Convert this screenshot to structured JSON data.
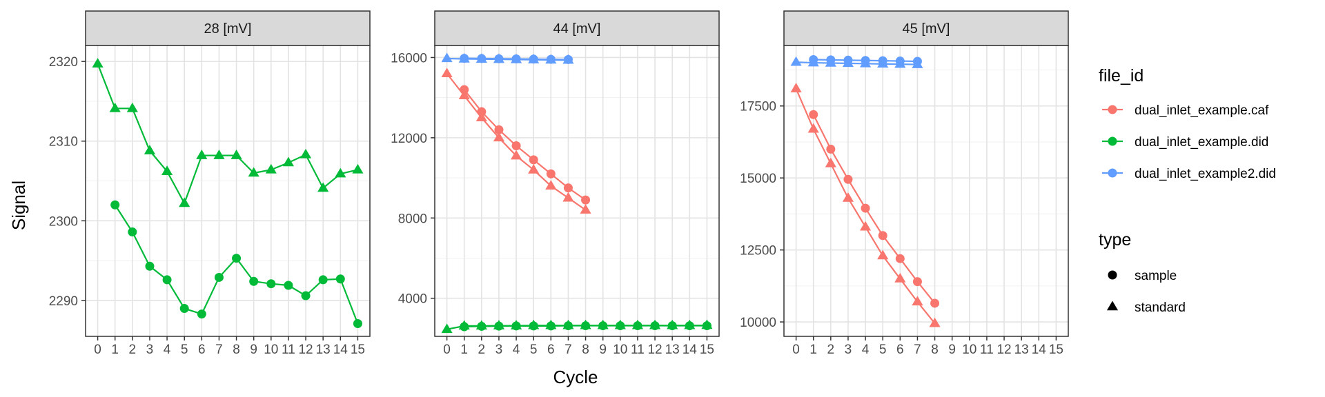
{
  "chart_data": {
    "type": "line",
    "title": "",
    "xlabel": "Cycle",
    "ylabel": "Signal",
    "grid": true,
    "legend_position": "right",
    "x_ticks": [
      0,
      1,
      2,
      3,
      4,
      5,
      6,
      7,
      8,
      9,
      10,
      11,
      12,
      13,
      14,
      15
    ],
    "x_tick_labels": [
      "0",
      "1",
      "2",
      "3",
      "4",
      "5",
      "6",
      "7",
      "8",
      "9",
      "10",
      "11",
      "12",
      "13",
      "14",
      "15"
    ],
    "colors": {
      "dual_inlet_example.caf": "#F8766D",
      "dual_inlet_example.did": "#00BA38",
      "dual_inlet_example2.did": "#619CFF"
    },
    "legend": {
      "file_title": "file_id",
      "file_items": [
        "dual_inlet_example.caf",
        "dual_inlet_example.did",
        "dual_inlet_example2.did"
      ],
      "type_title": "type",
      "type_items": [
        {
          "label": "sample",
          "shape": "circle"
        },
        {
          "label": "standard",
          "shape": "triangle"
        }
      ]
    },
    "panels": [
      {
        "strip": "28 [mV]",
        "ylim": [
          2285.5,
          2322
        ],
        "y_ticks": [
          2290,
          2300,
          2310,
          2320
        ],
        "y_tick_labels": [
          "2290",
          "2300",
          "2310",
          "2320"
        ],
        "series": [
          {
            "file_id": "dual_inlet_example.did",
            "type": "standard",
            "x": [
              0,
              1,
              2,
              3,
              4,
              5,
              6,
              7,
              8,
              9,
              10,
              11,
              12,
              13,
              14,
              15
            ],
            "y": [
              2319.7,
              2314.1,
              2314.1,
              2308.8,
              2306.2,
              2302.2,
              2308.2,
              2308.2,
              2308.2,
              2306.0,
              2306.4,
              2307.3,
              2308.3,
              2304.1,
              2305.9,
              2306.4
            ]
          },
          {
            "file_id": "dual_inlet_example.did",
            "type": "sample",
            "x": [
              1,
              2,
              3,
              4,
              5,
              6,
              7,
              8,
              9,
              10,
              11,
              12,
              13,
              14,
              15
            ],
            "y": [
              2302.0,
              2298.6,
              2294.3,
              2292.6,
              2289.0,
              2288.3,
              2292.9,
              2295.3,
              2292.4,
              2292.1,
              2291.9,
              2290.6,
              2292.6,
              2292.7,
              2287.1
            ]
          }
        ]
      },
      {
        "strip": "44 [mV]",
        "ylim": [
          2100,
          16600
        ],
        "y_ticks": [
          4000,
          8000,
          12000,
          16000
        ],
        "y_tick_labels": [
          "4000",
          "8000",
          "12000",
          "16000"
        ],
        "series": [
          {
            "file_id": "dual_inlet_example2.did",
            "type": "standard",
            "x": [
              0,
              1,
              2,
              3,
              4,
              5,
              6,
              7
            ],
            "y": [
              15950,
              15930,
              15920,
              15910,
              15900,
              15890,
              15880,
              15870
            ]
          },
          {
            "file_id": "dual_inlet_example2.did",
            "type": "sample",
            "x": [
              1,
              2,
              3,
              4,
              5,
              6,
              7
            ],
            "y": [
              15960,
              15950,
              15940,
              15930,
              15920,
              15910,
              15900
            ]
          },
          {
            "file_id": "dual_inlet_example.caf",
            "type": "standard",
            "x": [
              0,
              1,
              2,
              3,
              4,
              5,
              6,
              7,
              8
            ],
            "y": [
              15200,
              14100,
              13000,
              12000,
              11100,
              10400,
              9600,
              9000,
              8400
            ]
          },
          {
            "file_id": "dual_inlet_example.caf",
            "type": "sample",
            "x": [
              1,
              2,
              3,
              4,
              5,
              6,
              7,
              8
            ],
            "y": [
              14400,
              13300,
              12400,
              11600,
              10900,
              10200,
              9500,
              8900
            ]
          },
          {
            "file_id": "dual_inlet_example.did",
            "type": "standard",
            "x": [
              0,
              1,
              2,
              3,
              4,
              5,
              6,
              7,
              8,
              9,
              10,
              11,
              12,
              13,
              14,
              15
            ],
            "y": [
              2450,
              2620,
              2620,
              2630,
              2630,
              2640,
              2640,
              2640,
              2640,
              2640,
              2640,
              2640,
              2640,
              2640,
              2640,
              2650
            ]
          },
          {
            "file_id": "dual_inlet_example.did",
            "type": "sample",
            "x": [
              1,
              2,
              3,
              4,
              5,
              6,
              7,
              8,
              9,
              10,
              11,
              12,
              13,
              14,
              15
            ],
            "y": [
              2580,
              2600,
              2610,
              2620,
              2620,
              2620,
              2630,
              2630,
              2630,
              2630,
              2630,
              2630,
              2630,
              2630,
              2630
            ]
          }
        ]
      },
      {
        "strip": "45 [mV]",
        "ylim": [
          9500,
          19600
        ],
        "y_ticks": [
          10000,
          12500,
          15000,
          17500
        ],
        "y_tick_labels": [
          "10000",
          "12500",
          "15000",
          "17500"
        ],
        "series": [
          {
            "file_id": "dual_inlet_example2.did",
            "type": "standard",
            "x": [
              0,
              1,
              2,
              3,
              4,
              5,
              6,
              7
            ],
            "y": [
              19020,
              19000,
              18990,
              18980,
              18970,
              18960,
              18950,
              18940
            ]
          },
          {
            "file_id": "dual_inlet_example2.did",
            "type": "sample",
            "x": [
              1,
              2,
              3,
              4,
              5,
              6,
              7
            ],
            "y": [
              19110,
              19100,
              19090,
              19080,
              19070,
              19060,
              19050
            ]
          },
          {
            "file_id": "dual_inlet_example.caf",
            "type": "standard",
            "x": [
              0,
              1,
              2,
              3,
              4,
              5,
              6,
              7,
              8
            ],
            "y": [
              18100,
              16700,
              15500,
              14300,
              13300,
              12300,
              11500,
              10700,
              9950
            ]
          },
          {
            "file_id": "dual_inlet_example.caf",
            "type": "sample",
            "x": [
              1,
              2,
              3,
              4,
              5,
              6,
              7,
              8
            ],
            "y": [
              17200,
              16000,
              14950,
              13950,
              13000,
              12200,
              11400,
              10650
            ]
          }
        ]
      }
    ]
  }
}
